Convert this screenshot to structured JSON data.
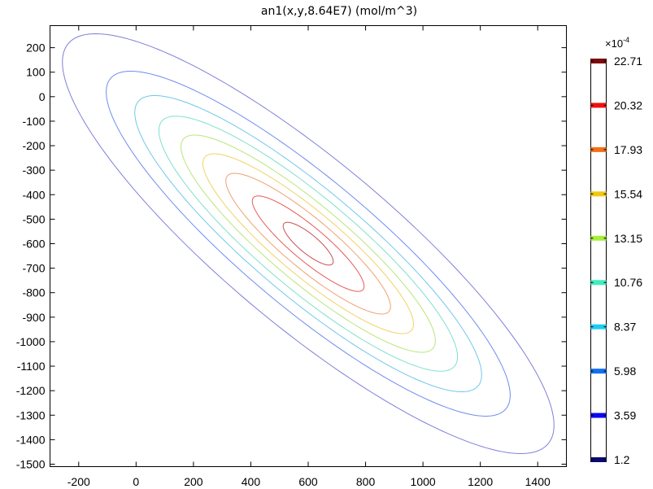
{
  "chart_data": {
    "type": "contour",
    "title": "an1(x,y,8.64E7) (mol/m^3)",
    "xlabel": "",
    "ylabel": "",
    "xlim": [
      -300,
      1500
    ],
    "ylim": [
      -1510,
      290
    ],
    "x_ticks": [
      -200,
      0,
      200,
      400,
      600,
      800,
      1000,
      1200,
      1400
    ],
    "y_ticks": [
      200,
      100,
      0,
      -100,
      -200,
      -300,
      -400,
      -500,
      -600,
      -700,
      -800,
      -900,
      -1000,
      -1100,
      -1200,
      -1300,
      -1400,
      -1500
    ],
    "grid": false,
    "center": [
      600,
      -600
    ],
    "orientation_deg": -45,
    "levels": [
      {
        "value": 3.59,
        "color": "#7f7fd9",
        "semi_major": 1170,
        "semi_minor": 315
      },
      {
        "value": 5.98,
        "color": "#6f8cf0",
        "semi_major": 965,
        "semi_minor": 245
      },
      {
        "value": 8.37,
        "color": "#6fc8ec",
        "semi_major": 830,
        "semi_minor": 205
      },
      {
        "value": 10.76,
        "color": "#7ee0cc",
        "semi_major": 715,
        "semi_minor": 175
      },
      {
        "value": 13.15,
        "color": "#b8e67a",
        "semi_major": 610,
        "semi_minor": 145
      },
      {
        "value": 15.54,
        "color": "#f0d264",
        "semi_major": 505,
        "semi_minor": 120
      },
      {
        "value": 17.93,
        "color": "#f0a070",
        "semi_major": 395,
        "semi_minor": 94
      },
      {
        "value": 20.32,
        "color": "#e85a5a",
        "semi_major": 268,
        "semi_minor": 64
      },
      {
        "value": 22.71,
        "color": "#c85050",
        "semi_major": 118,
        "semi_minor": 36
      }
    ],
    "colorbar": {
      "exponent_base": "×10",
      "exponent_power": "-4",
      "ticks": [
        {
          "label": "22.71",
          "color": "#7b0a0a"
        },
        {
          "label": "20.32",
          "color": "#ee1111"
        },
        {
          "label": "17.93",
          "color": "#f27018"
        },
        {
          "label": "15.54",
          "color": "#f0c814"
        },
        {
          "label": "13.15",
          "color": "#a6ee3c"
        },
        {
          "label": "10.76",
          "color": "#3eeebc"
        },
        {
          "label": "8.37",
          "color": "#1ccdf0"
        },
        {
          "label": "5.98",
          "color": "#1470f0"
        },
        {
          "label": "3.59",
          "color": "#0a0af0"
        },
        {
          "label": "1.2",
          "color": "#0a0a70"
        }
      ]
    }
  }
}
